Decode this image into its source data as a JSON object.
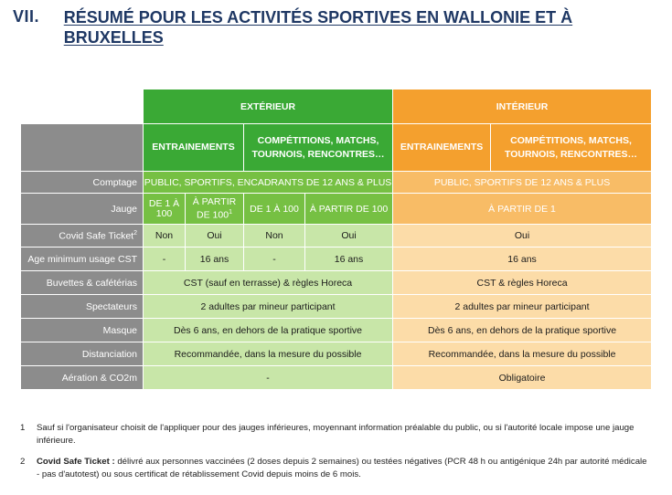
{
  "heading": {
    "number": "VII.",
    "title": "RÉSUMÉ POUR LES ACTIVITÉS SPORTIVES EN WALLONIE ET À BRUXELLES"
  },
  "table": {
    "exterieur": "EXTÉRIEUR",
    "interieur": "INTÉRIEUR",
    "sub_entrainements_ext": "ENTRAINEMENTS",
    "sub_competitions_ext": "COMPÉTITIONS, MATCHS, TOURNOIS, RENCONTRES…",
    "sub_entrainements_int": "ENTRAINEMENTS",
    "sub_competitions_int": "COMPÉTITIONS, MATCHS, TOURNOIS, RENCONTRES…",
    "rows": {
      "comptage": {
        "label": "Comptage",
        "ext": "PUBLIC, SPORTIFS, ENCADRANTS DE 12 ANS & PLUS",
        "int": "PUBLIC, SPORTIFS DE 12 ANS & PLUS"
      },
      "jauge": {
        "label": "Jauge",
        "ext_a": "DE 1 À 100",
        "ext_b": "À PARTIR DE 100",
        "ext_b_sup": "1",
        "ext_c": "DE 1 À 100",
        "ext_d": "À PARTIR DE 100",
        "int": "À PARTIR DE 1"
      },
      "cst": {
        "label": "Covid Safe Ticket",
        "label_sup": "2",
        "ext_a": "Non",
        "ext_b": "Oui",
        "ext_c": "Non",
        "ext_d": "Oui",
        "int": "Oui"
      },
      "age": {
        "label": "Age minimum usage CST",
        "ext_a": "-",
        "ext_b": "16 ans",
        "ext_c": "-",
        "ext_d": "16 ans",
        "int": "16 ans"
      },
      "buvettes": {
        "label": "Buvettes & cafétérias",
        "ext": "CST (sauf en terrasse) & règles Horeca",
        "int": "CST & règles Horeca"
      },
      "spectateurs": {
        "label": "Spectateurs",
        "ext": "2 adultes par mineur participant",
        "int": "2 adultes par mineur participant"
      },
      "masque": {
        "label": "Masque",
        "ext": "Dès 6 ans, en dehors de la pratique sportive",
        "int": "Dès 6 ans, en dehors de la pratique sportive"
      },
      "distanciation": {
        "label": "Distanciation",
        "ext": "Recommandée, dans la mesure du possible",
        "int": "Recommandée, dans la mesure du possible"
      },
      "aeration": {
        "label": "Aération & CO2m",
        "ext": "-",
        "int": "Obligatoire"
      }
    }
  },
  "footnotes": [
    {
      "mark": "1",
      "bold": "",
      "text": "Sauf si l'organisateur choisit de l'appliquer pour des jauges inférieures, moyennant information préalable du public, ou si l'autorité locale impose une jauge inférieure."
    },
    {
      "mark": "2",
      "bold": "Covid Safe Ticket :",
      "text": " délivré aux personnes vaccinées (2 doses depuis 2 semaines) ou testées négatives (PCR 48 h ou antigénique 24h par autorité médicale - pas d'autotest) ou sous certificat de rétablissement Covid depuis moins de 6 mois."
    }
  ],
  "colors": {
    "green_dark": "#3aa935",
    "green_medium": "#76c043",
    "green_light": "#c8e6a8",
    "orange_dark": "#f4a02e",
    "orange_medium": "#f8bc66",
    "orange_light": "#fcdca8",
    "label_gray": "#8c8c8c",
    "heading_navy": "#1f3864"
  }
}
